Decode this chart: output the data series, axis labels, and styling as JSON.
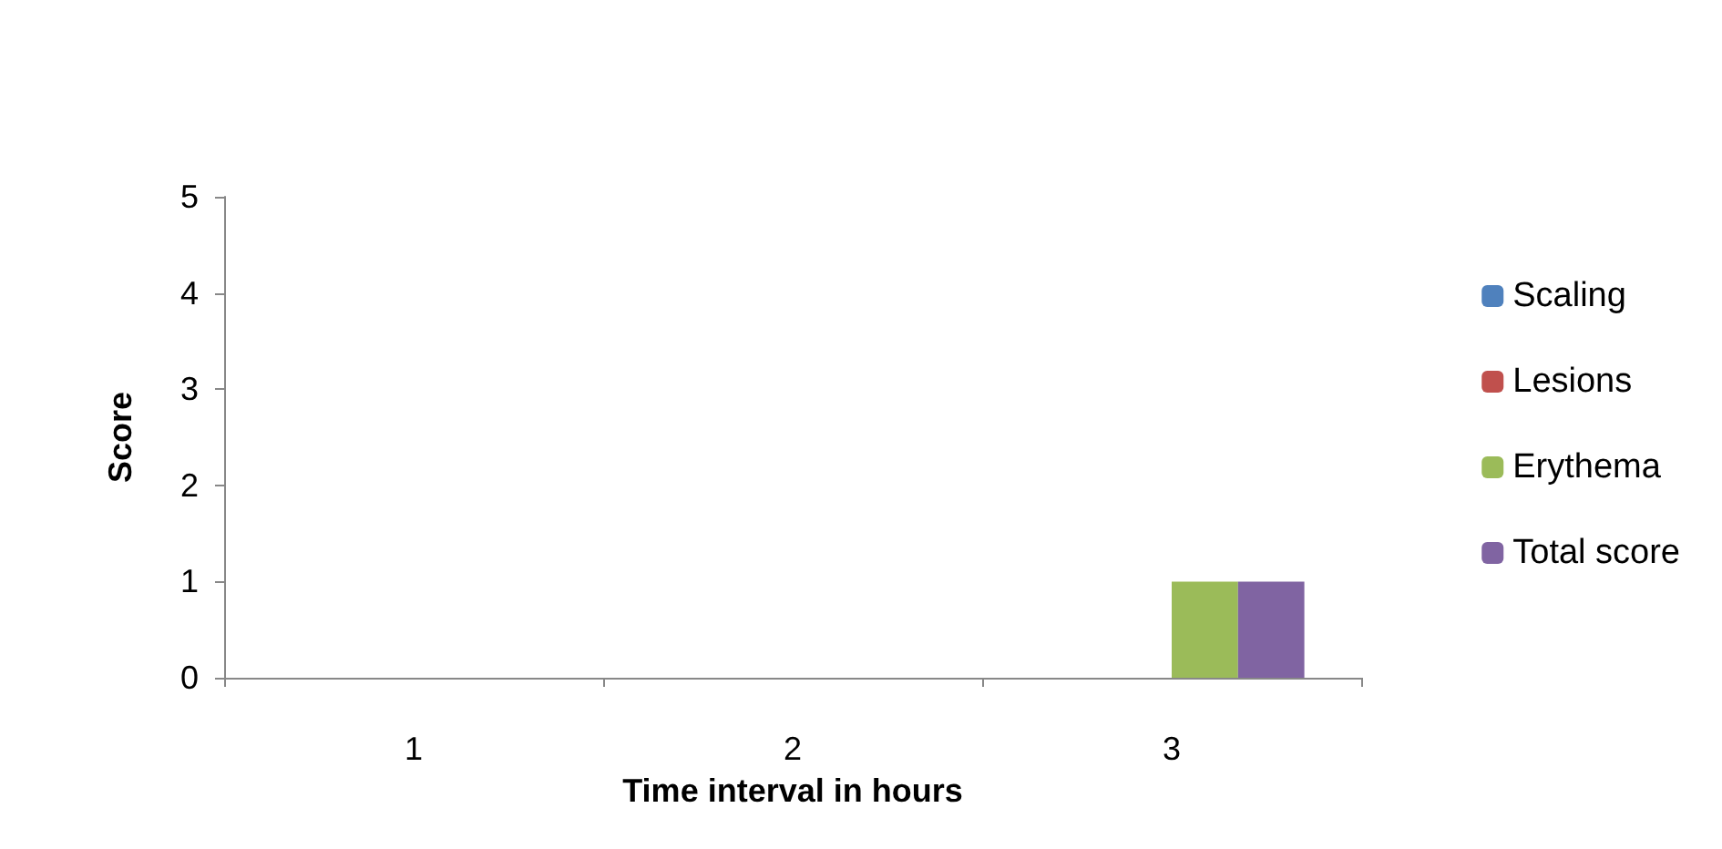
{
  "chart_data": {
    "type": "bar",
    "xlabel": "Time interval in hours",
    "ylabel": "Score",
    "categories": [
      "1",
      "2",
      "3"
    ],
    "series": [
      {
        "name": "Scaling",
        "color": "#4f81bd",
        "values": [
          0,
          0,
          0
        ]
      },
      {
        "name": "Lesions",
        "color": "#c0504d",
        "values": [
          0,
          0,
          0
        ]
      },
      {
        "name": "Erythema",
        "color": "#9bbb59",
        "values": [
          0,
          0,
          1
        ]
      },
      {
        "name": "Total score",
        "color": "#8064a2",
        "values": [
          0,
          0,
          1
        ]
      }
    ],
    "ylim": [
      0,
      5
    ],
    "yticks": [
      0,
      1,
      2,
      3,
      4,
      5
    ],
    "grid": false,
    "legend": "right"
  }
}
